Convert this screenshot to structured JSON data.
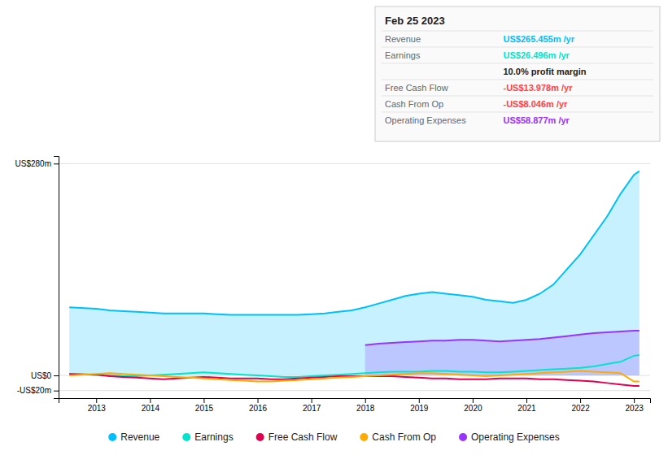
{
  "chart_data": {
    "type": "line",
    "x": [
      2012.5,
      2013,
      2013.25,
      2013.5,
      2013.75,
      2014,
      2014.25,
      2014.5,
      2014.75,
      2015,
      2015.25,
      2015.5,
      2015.75,
      2016,
      2016.25,
      2016.5,
      2016.75,
      2017,
      2017.25,
      2017.5,
      2017.75,
      2018,
      2018.25,
      2018.5,
      2018.75,
      2019,
      2019.25,
      2019.5,
      2019.75,
      2020,
      2020.25,
      2020.5,
      2020.75,
      2021,
      2021.25,
      2021.5,
      2021.75,
      2022,
      2022.25,
      2022.5,
      2022.75,
      2023,
      2023.1
    ],
    "series": [
      {
        "name": "Revenue",
        "type": "area",
        "color": "#00bfff",
        "values": [
          90,
          88,
          86,
          85,
          84,
          83,
          82,
          82,
          82,
          82,
          81,
          80,
          80,
          80,
          80,
          80,
          80,
          81,
          82,
          84,
          86,
          90,
          95,
          100,
          105,
          108,
          110,
          108,
          106,
          104,
          100,
          98,
          96,
          100,
          108,
          120,
          140,
          160,
          185,
          210,
          240,
          265,
          270
        ]
      },
      {
        "name": "Earnings",
        "type": "line",
        "color": "#00e5cc",
        "values": [
          2,
          1,
          0,
          -1,
          -1,
          0,
          1,
          2,
          3,
          4,
          3,
          2,
          1,
          0,
          -1,
          -2,
          -2,
          -1,
          0,
          1,
          2,
          3,
          4,
          5,
          5,
          5,
          6,
          6,
          5,
          5,
          4,
          4,
          5,
          6,
          7,
          8,
          9,
          10,
          12,
          15,
          18,
          26,
          27
        ]
      },
      {
        "name": "Free Cash Flow",
        "type": "line",
        "color": "#e0004e",
        "values": [
          2,
          1,
          -1,
          -2,
          -3,
          -4,
          -5,
          -4,
          -3,
          -2,
          -3,
          -4,
          -4,
          -4,
          -5,
          -5,
          -4,
          -3,
          -2,
          -1,
          -1,
          -1,
          -1,
          -1,
          -2,
          -3,
          -4,
          -4,
          -5,
          -5,
          -5,
          -4,
          -4,
          -4,
          -5,
          -5,
          -6,
          -7,
          -8,
          -10,
          -12,
          -14,
          -14
        ]
      },
      {
        "name": "Cash From Op",
        "type": "line",
        "color": "#ffaa00",
        "values": [
          0,
          2,
          3,
          2,
          1,
          0,
          -1,
          -2,
          -3,
          -4,
          -5,
          -6,
          -7,
          -8,
          -8,
          -7,
          -6,
          -5,
          -4,
          -3,
          -2,
          -1,
          0,
          1,
          2,
          3,
          3,
          2,
          1,
          0,
          -1,
          0,
          1,
          2,
          3,
          4,
          5,
          6,
          5,
          4,
          3,
          -8,
          -8
        ]
      },
      {
        "name": "Operating Expenses",
        "type": "area",
        "color": "#9933ff",
        "values": [
          null,
          null,
          null,
          null,
          null,
          null,
          null,
          null,
          null,
          null,
          null,
          null,
          null,
          null,
          null,
          null,
          null,
          null,
          null,
          null,
          null,
          40,
          42,
          43,
          44,
          45,
          46,
          46,
          47,
          47,
          46,
          45,
          46,
          47,
          48,
          50,
          52,
          54,
          56,
          57,
          58,
          59,
          59
        ]
      }
    ],
    "xlim": [
      2012.3,
      2023.3
    ],
    "xticks": [
      2013,
      2014,
      2015,
      2016,
      2017,
      2018,
      2019,
      2020,
      2021,
      2022,
      2023
    ],
    "ylim": [
      -30,
      290
    ],
    "yticks": [
      {
        "value": 280,
        "label": "US$280m"
      },
      {
        "value": 0,
        "label": "US$0"
      },
      {
        "value": -20,
        "label": "-US$20m"
      }
    ],
    "grid": true,
    "legend": "bottom",
    "annotations": [
      {
        "text": "Feb 25 2023"
      },
      {
        "label": "Revenue",
        "text": "US$265.455m /yr",
        "color": "#00bfff"
      },
      {
        "label": "Earnings",
        "text": "US$26.496m /yr",
        "color": "#00e5cc"
      },
      {
        "text": "10.0% profit margin"
      },
      {
        "label": "Free Cash Flow",
        "text": "-US$13.978m /yr",
        "color": "#ff4444"
      },
      {
        "label": "Cash From Op",
        "text": "-US$8.046m /yr",
        "color": "#ff4444"
      },
      {
        "label": "Operating Expenses",
        "text": "US$58.877m /yr",
        "color": "#9933ff"
      }
    ]
  }
}
